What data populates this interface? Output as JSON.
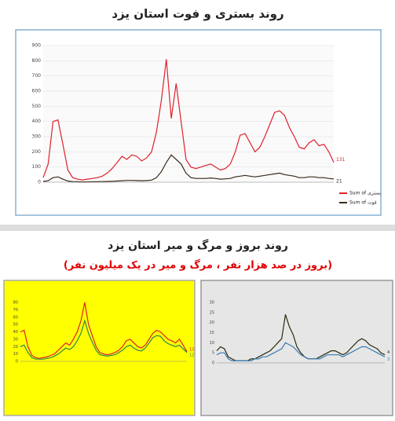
{
  "header": {
    "title": "روند بستری و فوت استان یزد"
  },
  "section": {
    "heading": "روند بروز و مرگ و میر استان یزد",
    "subtitle": "(بروز در صد هزار نفر ، مرگ و میر در یک میلیون نفر)"
  },
  "chart_data": [
    {
      "type": "line",
      "ylim": [
        0,
        900
      ],
      "yticks": [
        0,
        100,
        200,
        300,
        400,
        500,
        600,
        700,
        800,
        900
      ],
      "grid": true,
      "series": [
        {
          "name": "Sum of بستری",
          "color": "#e0202a",
          "values": [
            30,
            120,
            400,
            410,
            250,
            80,
            30,
            20,
            15,
            20,
            25,
            30,
            40,
            60,
            90,
            130,
            170,
            150,
            180,
            170,
            140,
            160,
            200,
            330,
            540,
            810,
            420,
            650,
            400,
            150,
            100,
            90,
            100,
            110,
            120,
            100,
            80,
            90,
            120,
            200,
            310,
            320,
            260,
            200,
            230,
            300,
            380,
            460,
            470,
            440,
            360,
            300,
            230,
            220,
            260,
            280,
            240,
            250,
            200,
            131
          ]
        },
        {
          "name": "Sum of فوت",
          "color": "#3a2a1a",
          "values": [
            5,
            10,
            30,
            35,
            20,
            8,
            4,
            3,
            2,
            2,
            3,
            3,
            4,
            5,
            6,
            8,
            10,
            12,
            12,
            11,
            10,
            11,
            14,
            30,
            70,
            130,
            180,
            150,
            120,
            60,
            30,
            25,
            25,
            25,
            28,
            25,
            20,
            22,
            25,
            35,
            40,
            45,
            40,
            35,
            40,
            45,
            50,
            55,
            60,
            50,
            45,
            40,
            30,
            30,
            35,
            35,
            30,
            30,
            25,
            21
          ]
        }
      ]
    },
    {
      "type": "line",
      "ylim": [
        0,
        80
      ],
      "yticks": [
        0,
        10,
        20,
        30,
        40,
        50,
        60,
        70,
        80
      ],
      "grid": false,
      "series": [
        {
          "color": "#e0202a",
          "values": [
            40,
            42,
            20,
            8,
            5,
            4,
            5,
            6,
            8,
            10,
            15,
            20,
            25,
            22,
            30,
            40,
            55,
            80,
            50,
            35,
            20,
            12,
            10,
            9,
            10,
            12,
            15,
            20,
            28,
            30,
            25,
            20,
            18,
            22,
            30,
            38,
            42,
            40,
            35,
            30,
            28,
            25,
            30,
            22,
            13
          ]
        },
        {
          "color": "#2a8a4a",
          "values": [
            20,
            22,
            12,
            5,
            3,
            3,
            3,
            4,
            5,
            7,
            10,
            14,
            18,
            16,
            20,
            28,
            38,
            55,
            38,
            26,
            15,
            9,
            8,
            7,
            8,
            9,
            12,
            15,
            20,
            22,
            18,
            15,
            14,
            18,
            25,
            32,
            35,
            34,
            28,
            24,
            22,
            20,
            22,
            17,
            12
          ]
        }
      ]
    },
    {
      "type": "line",
      "ylim": [
        0,
        30
      ],
      "yticks": [
        0,
        5,
        10,
        15,
        20,
        25,
        30
      ],
      "grid": false,
      "series": [
        {
          "color": "#2a2a10",
          "values": [
            6,
            8,
            7,
            3,
            2,
            1,
            1,
            1,
            1,
            2,
            2,
            3,
            4,
            5,
            6,
            8,
            10,
            12,
            24,
            18,
            14,
            8,
            5,
            3,
            2,
            2,
            2,
            3,
            4,
            5,
            6,
            6,
            5,
            4,
            5,
            7,
            9,
            11,
            12,
            11,
            9,
            8,
            7,
            5,
            4
          ]
        },
        {
          "color": "#3a7ab0",
          "values": [
            4,
            5,
            5,
            2,
            1,
            1,
            1,
            1,
            1,
            1,
            2,
            2,
            3,
            3,
            4,
            5,
            6,
            7,
            10,
            9,
            8,
            6,
            4,
            3,
            2,
            2,
            2,
            2,
            3,
            4,
            4,
            4,
            4,
            3,
            4,
            5,
            6,
            7,
            8,
            8,
            7,
            6,
            5,
            4,
            3
          ]
        }
      ]
    }
  ]
}
